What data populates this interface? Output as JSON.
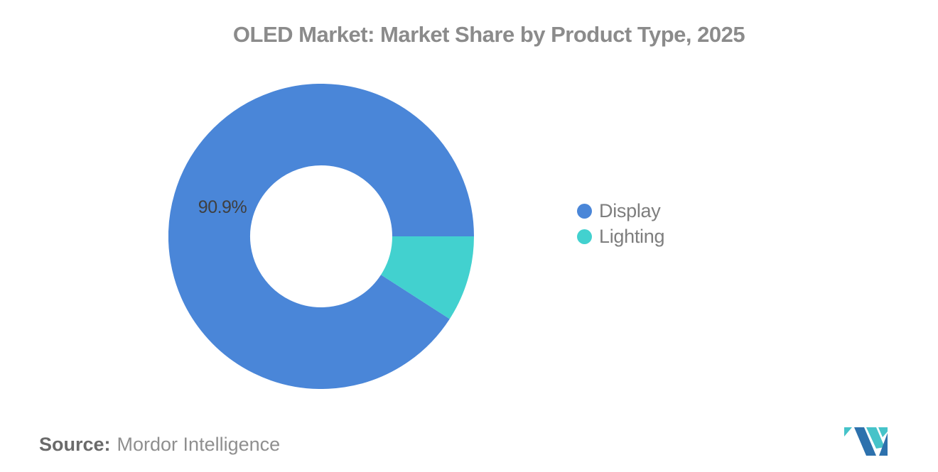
{
  "chart_data": {
    "type": "pie",
    "title": "OLED Market: Market Share by Product Type, 2025",
    "donut": true,
    "inner_radius_ratio": 0.465,
    "start_angle_deg": 0,
    "direction": "counterclockwise",
    "legend_position": "right",
    "slices": [
      {
        "label": "Display",
        "value": 90.9,
        "color": "#4a86d8",
        "data_label": "90.9%"
      },
      {
        "label": "Lighting",
        "value": 9.1,
        "color": "#42d1cf",
        "data_label": ""
      }
    ]
  },
  "legend": {
    "items": [
      {
        "label": "Display",
        "color": "#4a86d8"
      },
      {
        "label": "Lighting",
        "color": "#42d1cf"
      }
    ]
  },
  "source": {
    "prefix": "Source:",
    "text": "Mordor Intelligence"
  },
  "logo": {
    "name": "mordor-intelligence-logo",
    "teal": "#46c3c9",
    "blue": "#2d71ad"
  }
}
